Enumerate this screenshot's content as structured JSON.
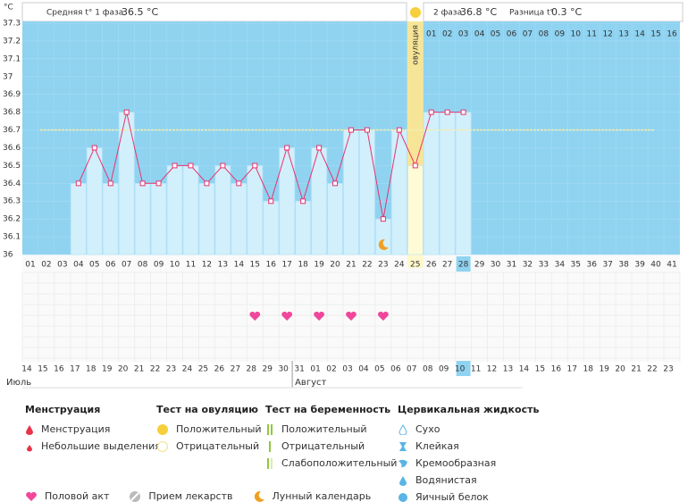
{
  "header": {
    "unit": "°C",
    "phase1_label": "Средняя t° 1 фаза",
    "phase1_value": "36.5 °C",
    "phase2_label": "2 фаза",
    "phase2_value": "36.8 °C",
    "diff_label": "Разница t°",
    "diff_value": "0.3 °C"
  },
  "chart_data": {
    "type": "line",
    "categories": [
      "01",
      "02",
      "03",
      "04",
      "05",
      "06",
      "07",
      "08",
      "09",
      "10",
      "11",
      "12",
      "13",
      "14",
      "15",
      "16",
      "17",
      "18",
      "19",
      "20",
      "21",
      "22",
      "23",
      "24",
      "25",
      "26",
      "27",
      "28",
      "29",
      "30",
      "31",
      "32",
      "33",
      "34",
      "35",
      "36",
      "37",
      "38",
      "39",
      "40",
      "41"
    ],
    "values": [
      null,
      null,
      null,
      36.4,
      36.6,
      36.4,
      36.8,
      36.4,
      36.4,
      36.5,
      36.5,
      36.4,
      36.5,
      36.4,
      36.5,
      36.3,
      36.6,
      36.3,
      36.6,
      36.4,
      36.7,
      36.7,
      36.2,
      36.7,
      36.5,
      36.8,
      36.8,
      36.8,
      null,
      null,
      null,
      null,
      null,
      null,
      null,
      null,
      null,
      null,
      null,
      null,
      null
    ],
    "color": "#e8336d",
    "bar_color": "#d2effc",
    "background": "#8fd3f1",
    "ylim": [
      36,
      37.3
    ],
    "yticks": [
      36,
      36.1,
      36.2,
      36.3,
      36.4,
      36.5,
      36.6,
      36.7,
      36.8,
      36.9,
      37,
      37.1,
      37.2,
      37.3
    ],
    "coverline": 36.7,
    "ovulation_day": "25",
    "ovulation_label": "овуляция",
    "current_day": "28",
    "phase2_days": [
      "01",
      "02",
      "03",
      "04",
      "05",
      "06",
      "07",
      "08",
      "09",
      "10",
      "11",
      "12",
      "13",
      "14",
      "15",
      "16"
    ],
    "intercourse_days": [
      "15",
      "17",
      "19",
      "21",
      "23"
    ],
    "lunar_days": [
      "23"
    ],
    "dates": [
      "14",
      "15",
      "16",
      "17",
      "18",
      "19",
      "20",
      "21",
      "22",
      "23",
      "24",
      "25",
      "26",
      "27",
      "28",
      "29",
      "30",
      "31",
      "01",
      "02",
      "03",
      "04",
      "05",
      "06",
      "07",
      "08",
      "09",
      "10",
      "11",
      "12",
      "13",
      "14",
      "15",
      "16",
      "17",
      "18",
      "19",
      "20",
      "21",
      "22",
      "23"
    ],
    "dates_red": [
      false,
      true,
      true,
      false,
      false,
      false,
      false,
      false,
      true,
      true,
      false,
      false,
      false,
      false,
      false,
      true,
      true,
      false,
      false,
      false,
      false,
      false,
      true,
      true,
      false,
      false,
      false,
      false,
      false,
      true,
      true,
      false,
      false,
      false,
      false,
      false,
      true,
      true,
      false,
      false,
      false
    ],
    "months": [
      "Июль",
      "Август"
    ]
  },
  "legend": {
    "menstruation": {
      "title": "Менструация",
      "items": [
        "Менструация",
        "Небольшие выделения"
      ]
    },
    "ovulation_test": {
      "title": "Тест на овуляцию",
      "items": [
        "Положительный",
        "Отрицательный"
      ]
    },
    "pregnancy_test": {
      "title": "Тест на беременность",
      "items": [
        "Положительный",
        "Отрицательный",
        "Слабоположительный"
      ]
    },
    "cervical": {
      "title": "Цервикальная жидкость",
      "items": [
        "Сухо",
        "Клейкая",
        "Кремообразная",
        "Водянистая",
        "Яичный белок"
      ]
    },
    "other": [
      "Половой акт",
      "Прием лекарств",
      "Лунный календарь"
    ]
  }
}
